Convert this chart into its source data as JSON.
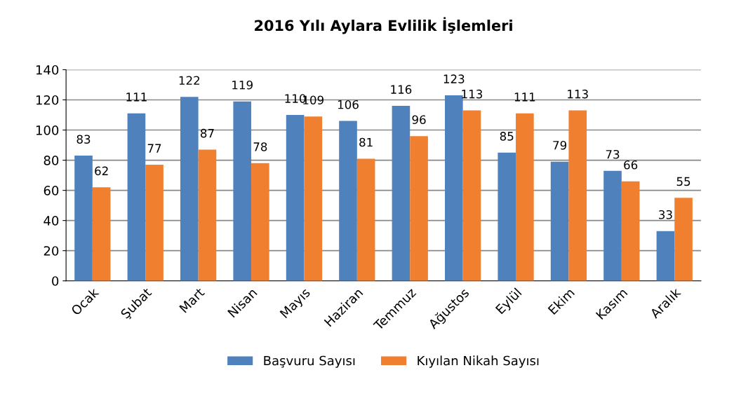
{
  "chart_data": {
    "type": "bar",
    "title": "2016 Yılı Aylara Evlilik İşlemleri",
    "categories": [
      "Ocak",
      "Şubat",
      "Mart",
      "Nisan",
      "Mayıs",
      "Haziran",
      "Temmuz",
      "Ağustos",
      "Eylül",
      "Ekim",
      "Kasım",
      "Aralık"
    ],
    "series": [
      {
        "name": "Başvuru Sayısı",
        "color": "#4f81bd",
        "values": [
          83,
          111,
          122,
          119,
          110,
          106,
          116,
          123,
          85,
          79,
          73,
          33
        ]
      },
      {
        "name": "Kıyılan Nikah Sayısı",
        "color": "#f07f2f",
        "values": [
          62,
          77,
          87,
          78,
          109,
          81,
          96,
          113,
          111,
          113,
          66,
          55
        ]
      }
    ],
    "ylim": [
      0,
      140
    ],
    "yticks": [
      0,
      20,
      40,
      60,
      80,
      100,
      120,
      140
    ],
    "grid": "y",
    "legend": "bottom",
    "data_labels": true
  }
}
